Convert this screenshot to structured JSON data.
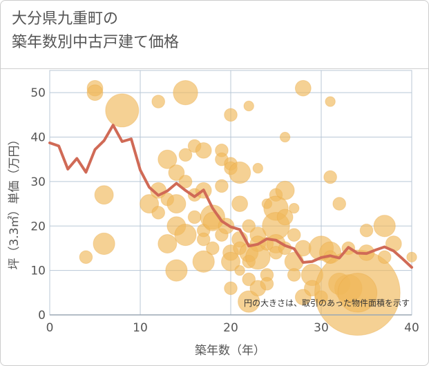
{
  "title_line1": "大分県九重町の",
  "title_line2": "築年数別中古戸建て価格",
  "chart_data": {
    "type": "scatter",
    "title": "大分県九重町の 築年数別中古戸建て価格",
    "xlabel": "築年数（年）",
    "ylabel": "坪（3.3㎡）単価（万円）",
    "xlim": [
      0,
      40
    ],
    "ylim": [
      0,
      55
    ],
    "xticks": [
      "0",
      "10",
      "20",
      "30",
      "40"
    ],
    "yticks": [
      "0",
      "10",
      "20",
      "30",
      "40",
      "50"
    ],
    "note": "円の大きさは、取引のあった物件面積を示す",
    "grid": true,
    "colors": {
      "bubble": "#f0b85a",
      "line": "#d06a56",
      "grid": "#b8c7d6"
    },
    "bubbles": [
      {
        "x": 4,
        "y": 13,
        "s": 3
      },
      {
        "x": 5,
        "y": 51,
        "s": 4
      },
      {
        "x": 5,
        "y": 50,
        "s": 4
      },
      {
        "x": 6,
        "y": 27,
        "s": 5
      },
      {
        "x": 6,
        "y": 16,
        "s": 6
      },
      {
        "x": 8,
        "y": 46,
        "s": 10
      },
      {
        "x": 11,
        "y": 25,
        "s": 5
      },
      {
        "x": 12,
        "y": 48,
        "s": 3
      },
      {
        "x": 12,
        "y": 28,
        "s": 4
      },
      {
        "x": 12,
        "y": 23,
        "s": 3
      },
      {
        "x": 13,
        "y": 35,
        "s": 5
      },
      {
        "x": 13,
        "y": 26,
        "s": 3
      },
      {
        "x": 13,
        "y": 16,
        "s": 5
      },
      {
        "x": 14,
        "y": 32,
        "s": 4
      },
      {
        "x": 14,
        "y": 25,
        "s": 5
      },
      {
        "x": 14,
        "y": 20,
        "s": 5
      },
      {
        "x": 14,
        "y": 10,
        "s": 6
      },
      {
        "x": 15,
        "y": 50,
        "s": 7
      },
      {
        "x": 15,
        "y": 36,
        "s": 3
      },
      {
        "x": 15,
        "y": 30,
        "s": 3
      },
      {
        "x": 15,
        "y": 18,
        "s": 6
      },
      {
        "x": 16,
        "y": 38,
        "s": 3
      },
      {
        "x": 16,
        "y": 27,
        "s": 3
      },
      {
        "x": 16,
        "y": 22,
        "s": 3
      },
      {
        "x": 17,
        "y": 37,
        "s": 4
      },
      {
        "x": 17,
        "y": 28,
        "s": 4
      },
      {
        "x": 17,
        "y": 19,
        "s": 3
      },
      {
        "x": 17,
        "y": 17,
        "s": 3
      },
      {
        "x": 17,
        "y": 12,
        "s": 6
      },
      {
        "x": 18,
        "y": 22,
        "s": 7
      },
      {
        "x": 18,
        "y": 21,
        "s": 5
      },
      {
        "x": 18,
        "y": 15,
        "s": 3
      },
      {
        "x": 19,
        "y": 37,
        "s": 3
      },
      {
        "x": 19,
        "y": 35,
        "s": 3
      },
      {
        "x": 19,
        "y": 29,
        "s": 3
      },
      {
        "x": 19,
        "y": 18,
        "s": 3
      },
      {
        "x": 19.5,
        "y": 20,
        "s": 4
      },
      {
        "x": 20,
        "y": 45,
        "s": 3
      },
      {
        "x": 20,
        "y": 34,
        "s": 3
      },
      {
        "x": 20,
        "y": 33,
        "s": 3
      },
      {
        "x": 20,
        "y": 14,
        "s": 4
      },
      {
        "x": 20,
        "y": 12,
        "s": 5
      },
      {
        "x": 20,
        "y": 6,
        "s": 3
      },
      {
        "x": 21,
        "y": 32,
        "s": 6
      },
      {
        "x": 21,
        "y": 25,
        "s": 4
      },
      {
        "x": 21,
        "y": 17,
        "s": 4
      },
      {
        "x": 21,
        "y": 15,
        "s": 3
      },
      {
        "x": 21,
        "y": 10,
        "s": 2
      },
      {
        "x": 22,
        "y": 47,
        "s": 2
      },
      {
        "x": 22,
        "y": 20,
        "s": 3
      },
      {
        "x": 22,
        "y": 14,
        "s": 5
      },
      {
        "x": 22,
        "y": 12,
        "s": 3
      },
      {
        "x": 22,
        "y": 8,
        "s": 3
      },
      {
        "x": 22,
        "y": 3,
        "s": 6
      },
      {
        "x": 23,
        "y": 33,
        "s": 2
      },
      {
        "x": 23,
        "y": 18,
        "s": 4
      },
      {
        "x": 23,
        "y": 16,
        "s": 4
      },
      {
        "x": 23,
        "y": 13,
        "s": 7
      },
      {
        "x": 23,
        "y": 6,
        "s": 4
      },
      {
        "x": 24,
        "y": 25,
        "s": 2
      },
      {
        "x": 24,
        "y": 16,
        "s": 3
      },
      {
        "x": 24,
        "y": 9,
        "s": 3
      },
      {
        "x": 24,
        "y": 7,
        "s": 3
      },
      {
        "x": 25,
        "y": 27,
        "s": 3
      },
      {
        "x": 25,
        "y": 24,
        "s": 7
      },
      {
        "x": 25,
        "y": 20,
        "s": 8
      },
      {
        "x": 25,
        "y": 16,
        "s": 5
      },
      {
        "x": 25,
        "y": 14,
        "s": 3
      },
      {
        "x": 26,
        "y": 40,
        "s": 2
      },
      {
        "x": 26,
        "y": 28,
        "s": 5
      },
      {
        "x": 26,
        "y": 22,
        "s": 4
      },
      {
        "x": 26,
        "y": 15,
        "s": 3
      },
      {
        "x": 27,
        "y": 24,
        "s": 2
      },
      {
        "x": 27,
        "y": 18,
        "s": 3
      },
      {
        "x": 27,
        "y": 12,
        "s": 5
      },
      {
        "x": 27,
        "y": 9,
        "s": 3
      },
      {
        "x": 28,
        "y": 51,
        "s": 4
      },
      {
        "x": 28,
        "y": 15,
        "s": 4
      },
      {
        "x": 28,
        "y": 4,
        "s": 4
      },
      {
        "x": 29,
        "y": 9,
        "s": 6
      },
      {
        "x": 29,
        "y": 6,
        "s": 4
      },
      {
        "x": 30,
        "y": 15,
        "s": 7
      },
      {
        "x": 30,
        "y": 4,
        "s": 3
      },
      {
        "x": 31,
        "y": 48,
        "s": 2
      },
      {
        "x": 31,
        "y": 31,
        "s": 3
      },
      {
        "x": 31,
        "y": 14,
        "s": 6
      },
      {
        "x": 31,
        "y": 13,
        "s": 3
      },
      {
        "x": 32,
        "y": 25,
        "s": 3
      },
      {
        "x": 32,
        "y": 7,
        "s": 6
      },
      {
        "x": 33,
        "y": 15,
        "s": 3
      },
      {
        "x": 33,
        "y": 6,
        "s": 8
      },
      {
        "x": 34,
        "y": 5,
        "s": 28
      },
      {
        "x": 34,
        "y": 5,
        "s": 12
      },
      {
        "x": 35,
        "y": 19,
        "s": 3
      },
      {
        "x": 35,
        "y": 14,
        "s": 4
      },
      {
        "x": 37,
        "y": 20,
        "s": 6
      },
      {
        "x": 37,
        "y": 13,
        "s": 3
      },
      {
        "x": 38,
        "y": 16,
        "s": 4
      },
      {
        "x": 40,
        "y": 13,
        "s": 2
      }
    ],
    "series": [
      {
        "x": [
          0,
          1,
          2,
          3,
          4,
          5,
          6,
          7,
          8,
          9,
          10,
          11,
          12,
          13,
          14,
          15,
          16,
          17,
          18,
          19,
          20,
          21,
          22,
          23,
          24,
          25,
          26,
          27,
          28,
          29,
          30,
          31,
          32,
          33,
          34,
          35,
          36,
          37,
          38,
          39,
          40
        ],
        "values": [
          38.7,
          38,
          32.8,
          35.2,
          32.1,
          37.2,
          39.2,
          42.7,
          39,
          39.6,
          32.6,
          28.7,
          26.9,
          27.9,
          29.6,
          28,
          26.6,
          28.1,
          24,
          21.1,
          19.8,
          19.2,
          15.5,
          15.9,
          17.1,
          16.8,
          15.6,
          14.9,
          11.8,
          12,
          12.9,
          13.3,
          12.8,
          15.2,
          13.9,
          13.8,
          14.6,
          15.3,
          14.4,
          12.6,
          10.7
        ]
      }
    ]
  }
}
